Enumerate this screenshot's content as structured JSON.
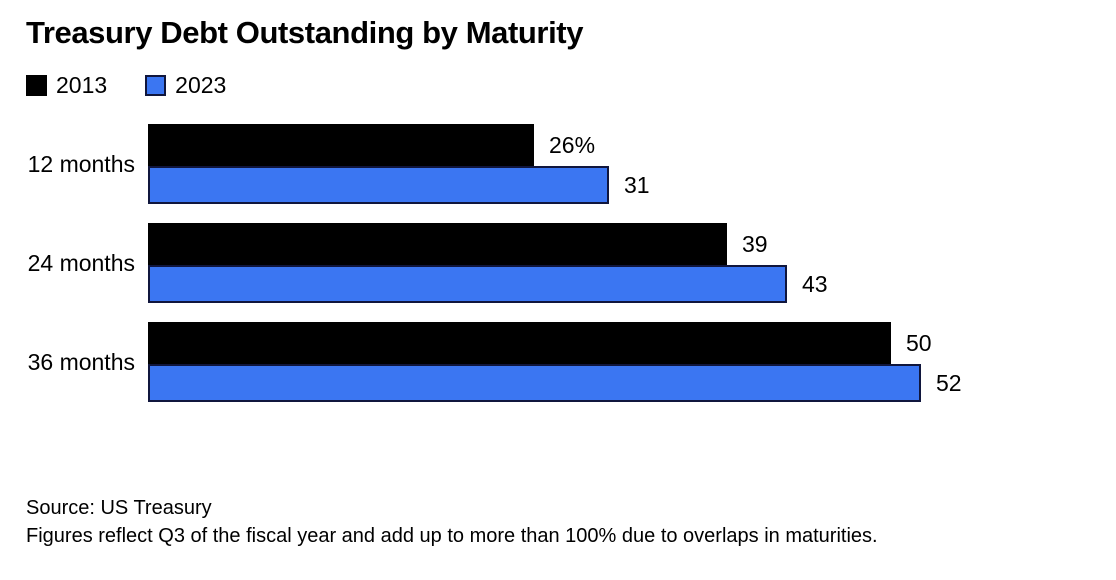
{
  "title": "Treasury Debt Outstanding by Maturity",
  "legend": {
    "items": [
      {
        "label": "2013",
        "color": "#000000",
        "border_color": "#000000"
      },
      {
        "label": "2023",
        "color": "#3B76F2",
        "border_color": "#10163D"
      }
    ]
  },
  "chart_data": {
    "type": "bar",
    "orientation": "horizontal",
    "title": "Treasury Debt Outstanding by Maturity",
    "categories": [
      "12 months",
      "24 months",
      "36 months"
    ],
    "series": [
      {
        "name": "2013",
        "color": "#000000",
        "border_color": "#000000",
        "values": [
          26,
          39,
          50
        ],
        "value_labels": [
          "26%",
          "39",
          "50"
        ]
      },
      {
        "name": "2023",
        "color": "#3B76F2",
        "border_color": "#10163D",
        "values": [
          31,
          43,
          52
        ],
        "value_labels": [
          "31",
          "43",
          "52"
        ]
      }
    ],
    "unit": "%",
    "xlabel": "",
    "ylabel": "",
    "xlim": [
      0,
      63
    ],
    "grid": false,
    "legend_position": "top-left",
    "value_labels_position": "outside-end"
  },
  "footer": {
    "source": "Source: US Treasury",
    "note": "Figures reflect Q3 of the fiscal year and add up to more than 100% due to overlaps in maturities."
  }
}
